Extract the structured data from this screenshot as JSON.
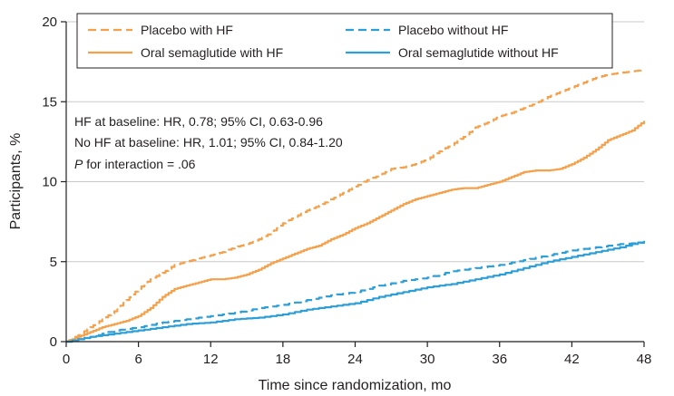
{
  "chart_data": {
    "type": "line",
    "xlabel": "Time since randomization, mo",
    "ylabel": "Participants, %",
    "xlim": [
      0,
      48
    ],
    "ylim": [
      0,
      20
    ],
    "xticks": [
      0,
      6,
      12,
      18,
      24,
      30,
      36,
      42,
      48
    ],
    "yticks": [
      0,
      5,
      10,
      15,
      20
    ],
    "legend_position": "top",
    "series": [
      {
        "name": "Placebo with HF",
        "color": "#f5a04a",
        "style": "dashed",
        "points": [
          [
            0,
            0
          ],
          [
            1,
            0.4
          ],
          [
            2,
            0.9
          ],
          [
            3,
            1.4
          ],
          [
            4,
            1.9
          ],
          [
            5,
            2.6
          ],
          [
            6,
            3.3
          ],
          [
            7,
            3.9
          ],
          [
            8,
            4.3
          ],
          [
            9,
            4.8
          ],
          [
            10,
            5.0
          ],
          [
            11,
            5.2
          ],
          [
            12,
            5.4
          ],
          [
            13,
            5.6
          ],
          [
            14,
            5.9
          ],
          [
            15,
            6.1
          ],
          [
            16,
            6.4
          ],
          [
            17,
            6.8
          ],
          [
            18,
            7.4
          ],
          [
            19,
            7.8
          ],
          [
            20,
            8.2
          ],
          [
            21,
            8.5
          ],
          [
            22,
            8.9
          ],
          [
            23,
            9.3
          ],
          [
            24,
            9.7
          ],
          [
            25,
            10.1
          ],
          [
            26,
            10.4
          ],
          [
            27,
            10.8
          ],
          [
            28,
            10.9
          ],
          [
            29,
            11.1
          ],
          [
            30,
            11.4
          ],
          [
            31,
            11.9
          ],
          [
            32,
            12.3
          ],
          [
            33,
            12.8
          ],
          [
            34,
            13.4
          ],
          [
            35,
            13.7
          ],
          [
            36,
            14.1
          ],
          [
            37,
            14.3
          ],
          [
            38,
            14.6
          ],
          [
            39,
            14.9
          ],
          [
            40,
            15.3
          ],
          [
            41,
            15.6
          ],
          [
            42,
            15.9
          ],
          [
            43,
            16.2
          ],
          [
            44,
            16.5
          ],
          [
            45,
            16.7
          ],
          [
            46,
            16.8
          ],
          [
            47,
            16.9
          ],
          [
            48,
            17.0
          ]
        ]
      },
      {
        "name": "Oral semaglutide with HF",
        "color": "#f5a04a",
        "style": "solid",
        "points": [
          [
            0,
            0
          ],
          [
            1,
            0.3
          ],
          [
            2,
            0.6
          ],
          [
            3,
            0.9
          ],
          [
            4,
            1.1
          ],
          [
            5,
            1.3
          ],
          [
            6,
            1.6
          ],
          [
            7,
            2.1
          ],
          [
            8,
            2.8
          ],
          [
            9,
            3.3
          ],
          [
            10,
            3.5
          ],
          [
            11,
            3.7
          ],
          [
            12,
            3.9
          ],
          [
            13,
            3.9
          ],
          [
            14,
            4.0
          ],
          [
            15,
            4.2
          ],
          [
            16,
            4.5
          ],
          [
            17,
            4.9
          ],
          [
            18,
            5.2
          ],
          [
            19,
            5.5
          ],
          [
            20,
            5.8
          ],
          [
            21,
            6.0
          ],
          [
            22,
            6.4
          ],
          [
            23,
            6.7
          ],
          [
            24,
            7.1
          ],
          [
            25,
            7.4
          ],
          [
            26,
            7.8
          ],
          [
            27,
            8.2
          ],
          [
            28,
            8.6
          ],
          [
            29,
            8.9
          ],
          [
            30,
            9.1
          ],
          [
            31,
            9.3
          ],
          [
            32,
            9.5
          ],
          [
            33,
            9.6
          ],
          [
            34,
            9.6
          ],
          [
            35,
            9.8
          ],
          [
            36,
            10.0
          ],
          [
            37,
            10.3
          ],
          [
            38,
            10.6
          ],
          [
            39,
            10.7
          ],
          [
            40,
            10.7
          ],
          [
            41,
            10.8
          ],
          [
            42,
            11.1
          ],
          [
            43,
            11.5
          ],
          [
            44,
            12.0
          ],
          [
            45,
            12.6
          ],
          [
            46,
            12.9
          ],
          [
            47,
            13.2
          ],
          [
            48,
            13.8
          ]
        ]
      },
      {
        "name": "Placebo without HF",
        "color": "#2d9fd8",
        "style": "dashed",
        "points": [
          [
            0,
            0
          ],
          [
            2,
            0.3
          ],
          [
            4,
            0.7
          ],
          [
            6,
            0.9
          ],
          [
            8,
            1.2
          ],
          [
            10,
            1.4
          ],
          [
            12,
            1.6
          ],
          [
            14,
            1.8
          ],
          [
            16,
            2.1
          ],
          [
            18,
            2.3
          ],
          [
            20,
            2.6
          ],
          [
            22,
            2.9
          ],
          [
            24,
            3.1
          ],
          [
            26,
            3.5
          ],
          [
            28,
            3.8
          ],
          [
            30,
            4.0
          ],
          [
            32,
            4.4
          ],
          [
            34,
            4.6
          ],
          [
            36,
            4.8
          ],
          [
            38,
            5.1
          ],
          [
            40,
            5.4
          ],
          [
            42,
            5.7
          ],
          [
            44,
            5.9
          ],
          [
            46,
            6.1
          ],
          [
            48,
            6.2
          ]
        ]
      },
      {
        "name": "Oral semaglutide without HF",
        "color": "#2d9fd8",
        "style": "solid",
        "points": [
          [
            0,
            0
          ],
          [
            2,
            0.3
          ],
          [
            4,
            0.5
          ],
          [
            6,
            0.7
          ],
          [
            8,
            0.9
          ],
          [
            10,
            1.1
          ],
          [
            12,
            1.2
          ],
          [
            14,
            1.4
          ],
          [
            16,
            1.5
          ],
          [
            18,
            1.7
          ],
          [
            20,
            2.0
          ],
          [
            22,
            2.2
          ],
          [
            24,
            2.4
          ],
          [
            26,
            2.8
          ],
          [
            28,
            3.1
          ],
          [
            30,
            3.4
          ],
          [
            32,
            3.6
          ],
          [
            34,
            3.9
          ],
          [
            36,
            4.2
          ],
          [
            38,
            4.6
          ],
          [
            40,
            5.0
          ],
          [
            42,
            5.3
          ],
          [
            44,
            5.6
          ],
          [
            46,
            5.9
          ],
          [
            48,
            6.3
          ]
        ]
      }
    ]
  },
  "annotations": {
    "line1": "HF at baseline: HR, 0.78; 95% CI, 0.63-0.96",
    "line2": "No HF at baseline: HR, 1.01; 95% CI, 0.84-1.20",
    "line3_italic": "P",
    "line3_rest": " for interaction = .06"
  }
}
